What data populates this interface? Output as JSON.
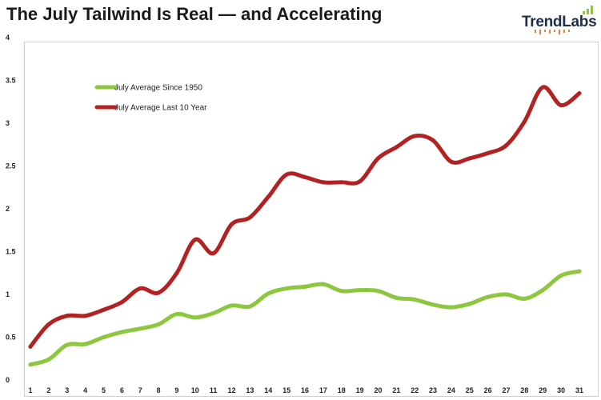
{
  "header": {
    "title": "The July Tailwind Is Real — and Accelerating",
    "logo_text": "TrendLabs"
  },
  "colors": {
    "series_1950": "#8dc63f",
    "series_10yr": "#b22222",
    "logo_text": "#1f2f4a",
    "logo_bars": "#8dc63f",
    "logo_dots": "#f47c30"
  },
  "chart_data": {
    "type": "line",
    "title": "The July Tailwind Is Real — and Accelerating",
    "xlabel": "",
    "ylabel": "",
    "x": [
      1,
      2,
      3,
      4,
      5,
      6,
      7,
      8,
      9,
      10,
      11,
      12,
      13,
      14,
      15,
      16,
      17,
      18,
      19,
      20,
      21,
      22,
      23,
      24,
      25,
      26,
      27,
      28,
      29,
      30,
      31
    ],
    "xlim": [
      1,
      31
    ],
    "ylim": [
      0,
      4
    ],
    "yticks": [
      "0",
      "0.5",
      "1",
      "1.5",
      "2",
      "2.5",
      "3",
      "3.5",
      "4"
    ],
    "xticks": [
      "1",
      "2",
      "3",
      "4",
      "5",
      "6",
      "7",
      "8",
      "9",
      "10",
      "11",
      "12",
      "13",
      "14",
      "15",
      "16",
      "17",
      "18",
      "19",
      "20",
      "21",
      "22",
      "23",
      "24",
      "25",
      "26",
      "27",
      "28",
      "29",
      "30",
      "31"
    ],
    "grid": false,
    "legend_position": "top-left",
    "series": [
      {
        "name": "July Average Since 1950",
        "color": "#8dc63f",
        "values": [
          0.18,
          0.24,
          0.41,
          0.42,
          0.5,
          0.56,
          0.6,
          0.65,
          0.77,
          0.73,
          0.78,
          0.87,
          0.86,
          1.01,
          1.07,
          1.09,
          1.12,
          1.04,
          1.05,
          1.04,
          0.96,
          0.94,
          0.88,
          0.85,
          0.89,
          0.97,
          1.0,
          0.95,
          1.05,
          1.22,
          1.27
        ]
      },
      {
        "name": "July Average Last 10 Year",
        "color": "#b22222",
        "values": [
          0.39,
          0.65,
          0.75,
          0.75,
          0.82,
          0.91,
          1.07,
          1.02,
          1.25,
          1.64,
          1.48,
          1.82,
          1.9,
          2.14,
          2.4,
          2.37,
          2.31,
          2.31,
          2.32,
          2.59,
          2.72,
          2.85,
          2.8,
          2.55,
          2.59,
          2.65,
          2.74,
          3.02,
          3.42,
          3.21,
          3.35
        ]
      }
    ]
  }
}
